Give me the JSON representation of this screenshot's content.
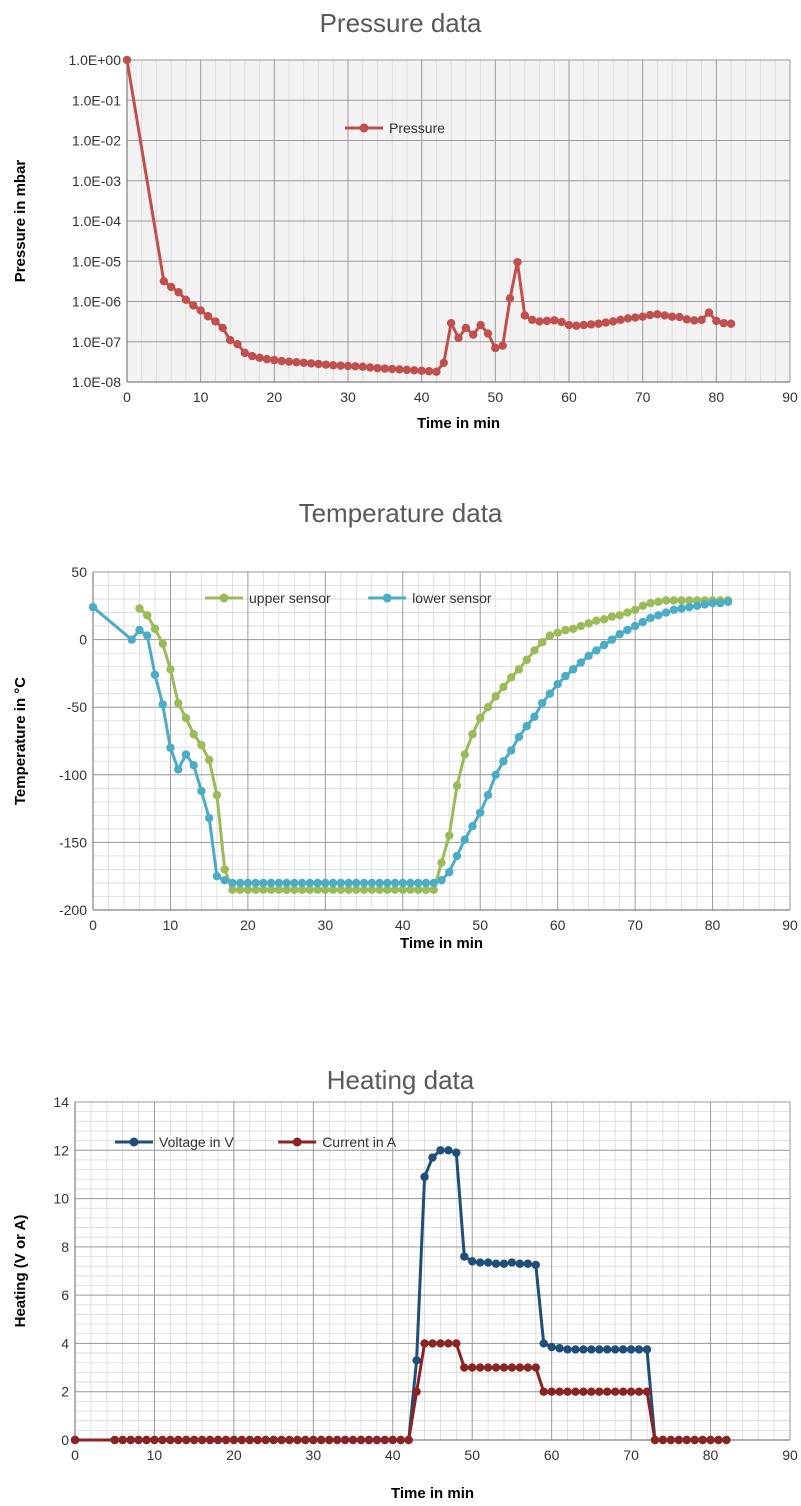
{
  "chart_data": [
    {
      "type": "line",
      "title": "Pressure data",
      "xlabel": "Time in min",
      "ylabel": "Pressure in mbar",
      "xlim": [
        0,
        90
      ],
      "ylim": [
        1e-08,
        1
      ],
      "yscale": "log",
      "xticks": [
        "0",
        "10",
        "20",
        "30",
        "40",
        "50",
        "60",
        "70",
        "80",
        "90"
      ],
      "yticks": [
        "1.0E+00",
        "1.0E-01",
        "1.0E-02",
        "1.0E-03",
        "1.0E-04",
        "1.0E-05",
        "1.0E-06",
        "1.0E-07",
        "1.0E-08"
      ],
      "grid": true,
      "legend_position": "top-center",
      "background": "#f2f2f2",
      "series": [
        {
          "name": "Pressure",
          "color": "#c0504d",
          "x": [
            0,
            5,
            6,
            7,
            8,
            9,
            10,
            11,
            12,
            13,
            14,
            15,
            16,
            17,
            18,
            19,
            20,
            21,
            22,
            23,
            24,
            25,
            26,
            27,
            28,
            29,
            30,
            31,
            32,
            33,
            34,
            35,
            36,
            37,
            38,
            39,
            40,
            41,
            42,
            43,
            44,
            45,
            46,
            47,
            48,
            49,
            50,
            51,
            52,
            53,
            54,
            55,
            56,
            57,
            58,
            59,
            60,
            61,
            62,
            63,
            64,
            65,
            66,
            67,
            68,
            69,
            70,
            71,
            72,
            73,
            74,
            75,
            76,
            77,
            78,
            79,
            80,
            81,
            82
          ],
          "y": [
            1.0,
            3.2e-06,
            2.3e-06,
            1.7e-06,
            1.1e-06,
            8e-07,
            6e-07,
            4.3e-07,
            3.2e-07,
            2.2e-07,
            1.1e-07,
            8.7e-08,
            5.3e-08,
            4.4e-08,
            4e-08,
            3.7e-08,
            3.5e-08,
            3.3e-08,
            3.2e-08,
            3.1e-08,
            3e-08,
            2.9e-08,
            2.8e-08,
            2.7e-08,
            2.6e-08,
            2.55e-08,
            2.5e-08,
            2.45e-08,
            2.4e-08,
            2.3e-08,
            2.2e-08,
            2.15e-08,
            2.1e-08,
            2.05e-08,
            2e-08,
            1.95e-08,
            1.9e-08,
            1.85e-08,
            1.8e-08,
            3e-08,
            2.9e-07,
            1.25e-07,
            2.2e-07,
            1.5e-07,
            2.6e-07,
            1.6e-07,
            7e-08,
            8e-08,
            1.2e-06,
            9.5e-06,
            4.5e-07,
            3.5e-07,
            3.2e-07,
            3.3e-07,
            3.4e-07,
            3.1e-07,
            2.6e-07,
            2.5e-07,
            2.6e-07,
            2.7e-07,
            2.8e-07,
            3e-07,
            3.2e-07,
            3.5e-07,
            3.8e-07,
            4e-07,
            4.2e-07,
            4.6e-07,
            4.8e-07,
            4.5e-07,
            4.2e-07,
            4.1e-07,
            3.6e-07,
            3.4e-07,
            3.5e-07,
            5.3e-07,
            3.3e-07,
            2.9e-07,
            2.8e-07
          ]
        }
      ]
    },
    {
      "type": "line",
      "title": "Temperature data",
      "xlabel": "Time in min",
      "ylabel": "Temperature in °C",
      "xlim": [
        0,
        90
      ],
      "ylim": [
        -200,
        50
      ],
      "xticks": [
        "0",
        "10",
        "20",
        "30",
        "40",
        "50",
        "60",
        "70",
        "80",
        "90"
      ],
      "yticks": [
        "50",
        "0",
        "-50",
        "-100",
        "-150",
        "-200"
      ],
      "grid": true,
      "legend_position": "top",
      "background": "#ffffff",
      "series": [
        {
          "name": "upper sensor",
          "color": "#9bbb59",
          "x": [
            6,
            7,
            8,
            9,
            10,
            11,
            12,
            13,
            14,
            15,
            16,
            17,
            18,
            19,
            20,
            21,
            22,
            23,
            24,
            25,
            26,
            27,
            28,
            29,
            30,
            31,
            32,
            33,
            34,
            35,
            36,
            37,
            38,
            39,
            40,
            41,
            42,
            43,
            44,
            45,
            46,
            47,
            48,
            49,
            50,
            51,
            52,
            53,
            54,
            55,
            56,
            57,
            58,
            59,
            60,
            61,
            62,
            63,
            64,
            65,
            66,
            67,
            68,
            69,
            70,
            71,
            72,
            73,
            74,
            75,
            76,
            77,
            78,
            79,
            80,
            81,
            82
          ],
          "y": [
            23,
            18,
            8,
            -3,
            -22,
            -47,
            -58,
            -70,
            -78,
            -89,
            -115,
            -170,
            -185,
            -185,
            -185,
            -185,
            -185,
            -185,
            -185,
            -185,
            -185,
            -185,
            -185,
            -185,
            -185,
            -185,
            -185,
            -185,
            -185,
            -185,
            -185,
            -185,
            -185,
            -185,
            -185,
            -185,
            -185,
            -185,
            -185,
            -165,
            -145,
            -108,
            -85,
            -70,
            -58,
            -50,
            -42,
            -35,
            -28,
            -22,
            -15,
            -8,
            -2,
            3,
            5,
            7,
            8,
            10,
            12,
            14,
            15,
            17,
            18,
            20,
            22,
            25,
            27,
            28,
            29,
            29,
            29,
            29,
            29,
            29,
            29,
            29,
            29
          ]
        },
        {
          "name": "lower sensor",
          "color": "#4bacc6",
          "x": [
            0,
            5,
            6,
            7,
            8,
            9,
            10,
            11,
            12,
            13,
            14,
            15,
            16,
            17,
            18,
            19,
            20,
            21,
            22,
            23,
            24,
            25,
            26,
            27,
            28,
            29,
            30,
            31,
            32,
            33,
            34,
            35,
            36,
            37,
            38,
            39,
            40,
            41,
            42,
            43,
            44,
            45,
            46,
            47,
            48,
            49,
            50,
            51,
            52,
            53,
            54,
            55,
            56,
            57,
            58,
            59,
            60,
            61,
            62,
            63,
            64,
            65,
            66,
            67,
            68,
            69,
            70,
            71,
            72,
            73,
            74,
            75,
            76,
            77,
            78,
            79,
            80,
            81,
            82
          ],
          "y": [
            24,
            0,
            7,
            3,
            -26,
            -48,
            -80,
            -96,
            -85,
            -93,
            -112,
            -132,
            -175,
            -178,
            -180,
            -180,
            -180,
            -180,
            -180,
            -180,
            -180,
            -180,
            -180,
            -180,
            -180,
            -180,
            -180,
            -180,
            -180,
            -180,
            -180,
            -180,
            -180,
            -180,
            -180,
            -180,
            -180,
            -180,
            -180,
            -180,
            -180,
            -178,
            -172,
            -160,
            -148,
            -138,
            -128,
            -115,
            -100,
            -90,
            -82,
            -72,
            -64,
            -57,
            -47,
            -40,
            -33,
            -27,
            -22,
            -17,
            -12,
            -8,
            -4,
            0,
            4,
            7,
            10,
            13,
            16,
            18,
            20,
            22,
            23,
            24,
            25,
            26,
            27,
            27,
            28
          ]
        }
      ]
    },
    {
      "type": "line",
      "title": "Heating data",
      "xlabel": "Time in min",
      "ylabel": "Heating (V or A)",
      "xlim": [
        0,
        90
      ],
      "ylim": [
        0,
        14
      ],
      "xticks": [
        "0",
        "10",
        "20",
        "30",
        "40",
        "50",
        "60",
        "70",
        "80",
        "90"
      ],
      "yticks": [
        "14",
        "12",
        "10",
        "8",
        "6",
        "4",
        "2",
        "0"
      ],
      "grid": true,
      "legend_position": "top-left",
      "background": "#ffffff",
      "series": [
        {
          "name": "Voltage in V",
          "color": "#1f4e79",
          "x": [
            0,
            5,
            6,
            7,
            8,
            9,
            10,
            11,
            12,
            13,
            14,
            15,
            16,
            17,
            18,
            19,
            20,
            21,
            22,
            23,
            24,
            25,
            26,
            27,
            28,
            29,
            30,
            31,
            32,
            33,
            34,
            35,
            36,
            37,
            38,
            39,
            40,
            41,
            42,
            43,
            44,
            45,
            46,
            47,
            48,
            49,
            50,
            51,
            52,
            53,
            54,
            55,
            56,
            57,
            58,
            59,
            60,
            61,
            62,
            63,
            64,
            65,
            66,
            67,
            68,
            69,
            70,
            71,
            72,
            73,
            74,
            75,
            76,
            77,
            78,
            79,
            80,
            81,
            82
          ],
          "y": [
            0,
            0,
            0,
            0,
            0,
            0,
            0,
            0,
            0,
            0,
            0,
            0,
            0,
            0,
            0,
            0,
            0,
            0,
            0,
            0,
            0,
            0,
            0,
            0,
            0,
            0,
            0,
            0,
            0,
            0,
            0,
            0,
            0,
            0,
            0,
            0,
            0,
            0,
            0,
            3.3,
            10.9,
            11.7,
            12.0,
            12.0,
            11.9,
            7.6,
            7.4,
            7.35,
            7.35,
            7.3,
            7.3,
            7.35,
            7.3,
            7.3,
            7.25,
            4.0,
            3.85,
            3.8,
            3.75,
            3.75,
            3.75,
            3.75,
            3.75,
            3.75,
            3.75,
            3.75,
            3.75,
            3.75,
            3.75,
            0,
            0,
            0,
            0,
            0,
            0,
            0,
            0,
            0,
            0
          ]
        },
        {
          "name": "Current in A",
          "color": "#8b2323",
          "x": [
            0,
            5,
            6,
            7,
            8,
            9,
            10,
            11,
            12,
            13,
            14,
            15,
            16,
            17,
            18,
            19,
            20,
            21,
            22,
            23,
            24,
            25,
            26,
            27,
            28,
            29,
            30,
            31,
            32,
            33,
            34,
            35,
            36,
            37,
            38,
            39,
            40,
            41,
            42,
            43,
            44,
            45,
            46,
            47,
            48,
            49,
            50,
            51,
            52,
            53,
            54,
            55,
            56,
            57,
            58,
            59,
            60,
            61,
            62,
            63,
            64,
            65,
            66,
            67,
            68,
            69,
            70,
            71,
            72,
            73,
            74,
            75,
            76,
            77,
            78,
            79,
            80,
            81,
            82
          ],
          "y": [
            0,
            0,
            0,
            0,
            0,
            0,
            0,
            0,
            0,
            0,
            0,
            0,
            0,
            0,
            0,
            0,
            0,
            0,
            0,
            0,
            0,
            0,
            0,
            0,
            0,
            0,
            0,
            0,
            0,
            0,
            0,
            0,
            0,
            0,
            0,
            0,
            0,
            0,
            0,
            2,
            4,
            4,
            4,
            4,
            4,
            3,
            3,
            3,
            3,
            3,
            3,
            3,
            3,
            3,
            3,
            2,
            2,
            2,
            2,
            2,
            2,
            2,
            2,
            2,
            2,
            2,
            2,
            2,
            2,
            0,
            0,
            0,
            0,
            0,
            0,
            0,
            0,
            0,
            0
          ]
        }
      ]
    }
  ]
}
